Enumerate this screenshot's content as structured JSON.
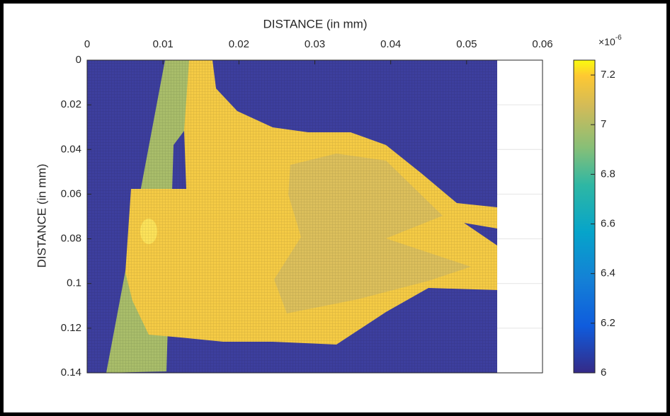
{
  "chart_data": {
    "type": "heatmap",
    "xlabel": "DISTANCE (in mm)",
    "ylabel": "DISTANCE (in mm)",
    "xlim": [
      0,
      0.06
    ],
    "xticks": [
      0,
      0.01,
      0.02,
      0.03,
      0.04,
      0.05,
      0.06
    ],
    "ylim": [
      0,
      0.14
    ],
    "yticks": [
      0,
      0.02,
      0.04,
      0.06,
      0.08,
      0.1,
      0.12,
      0.14
    ],
    "y_reversed": true,
    "grid": true,
    "colorbar": {
      "clim": [
        6,
        7.26
      ],
      "ticks": [
        6,
        6.2,
        6.4,
        6.6,
        6.8,
        7,
        7.2
      ],
      "multiplier_base": "×10",
      "multiplier_exponent": "-6"
    }
  }
}
